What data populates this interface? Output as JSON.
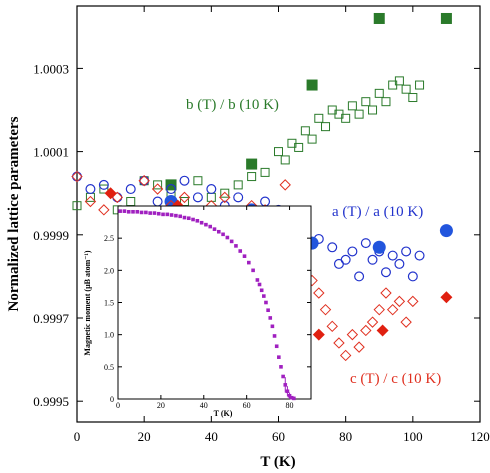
{
  "chart_data": [
    {
      "type": "scatter",
      "title": "",
      "xlabel": "T (K)",
      "ylabel": "Normalized lattice parameters",
      "xlim": [
        0,
        120
      ],
      "ylim": [
        0.99945,
        1.00045
      ],
      "xticks": [
        "0",
        "20",
        "40",
        "60",
        "80",
        "100",
        "120"
      ],
      "yticks": [
        "0.9995",
        "0.9997",
        "0.9999",
        "1.0001",
        "1.0003"
      ],
      "grid": false,
      "series": [
        {
          "name": "b (T) / b (10 K)",
          "color": "#2a7a2a",
          "marker": "open-square",
          "x": [
            0,
            4,
            8,
            12,
            16,
            20,
            24,
            28,
            32,
            36,
            40,
            44,
            48,
            52,
            56,
            60,
            62,
            64,
            66,
            68,
            70,
            72,
            74,
            76,
            78,
            80,
            82,
            84,
            86,
            88,
            90,
            92,
            94,
            96,
            98,
            100,
            102
          ],
          "y": [
            0.99997,
            0.99999,
            1.00001,
            0.99996,
            0.99998,
            1.00003,
            1.00002,
            1.0,
            0.99998,
            1.00003,
            0.99999,
            1.0,
            1.00002,
            1.00004,
            1.00005,
            1.0001,
            1.00008,
            1.00012,
            1.00011,
            1.00015,
            1.00013,
            1.00018,
            1.00016,
            1.0002,
            1.00019,
            1.00018,
            1.00021,
            1.00019,
            1.00022,
            1.0002,
            1.00024,
            1.00022,
            1.00026,
            1.00027,
            1.00025,
            1.00023,
            1.00026
          ]
        },
        {
          "name": "b (T) / b (10 K) (filled)",
          "color": "#2a7a2a",
          "marker": "filled-square",
          "x": [
            28,
            52,
            70,
            90,
            110
          ],
          "y": [
            1.00002,
            1.00007,
            1.00026,
            1.00042,
            1.00042
          ]
        },
        {
          "name": "a (T) / a (10 K)",
          "color": "#2233cc",
          "marker": "open-circle",
          "x": [
            0,
            4,
            8,
            12,
            16,
            20,
            24,
            28,
            32,
            36,
            40,
            44,
            48,
            52,
            56,
            60,
            64,
            68,
            72,
            76,
            78,
            80,
            82,
            84,
            86,
            88,
            90,
            92,
            94,
            96,
            98,
            100,
            102
          ],
          "y": [
            1.00004,
            1.00001,
            1.00002,
            0.99999,
            1.00001,
            1.00003,
            0.99998,
            1.00001,
            1.00003,
            0.99999,
            1.00001,
            0.99997,
            0.99999,
            0.99996,
            0.99998,
            0.99996,
            0.99993,
            0.99991,
            0.99989,
            0.99987,
            0.99983,
            0.99984,
            0.99986,
            0.9998,
            0.99988,
            0.99984,
            0.99986,
            0.99981,
            0.99985,
            0.99983,
            0.99986,
            0.9998,
            0.99985
          ]
        },
        {
          "name": "a (T) / a (10 K) (filled)",
          "color": "#2255dd",
          "marker": "filled-circle",
          "x": [
            28,
            52,
            70,
            90,
            110
          ],
          "y": [
            0.99998,
            0.99996,
            0.99988,
            0.99987,
            0.99991
          ]
        },
        {
          "name": "c (T) / c (10 K)",
          "color": "#e03020",
          "marker": "open-diamond",
          "x": [
            0,
            4,
            8,
            12,
            16,
            20,
            24,
            28,
            32,
            36,
            40,
            44,
            48,
            52,
            56,
            60,
            62,
            64,
            66,
            68,
            70,
            72,
            74,
            76,
            78,
            80,
            82,
            84,
            86,
            88,
            90,
            92,
            94,
            96,
            98,
            100
          ],
          "y": [
            1.00004,
            0.99998,
            0.99996,
            0.99999,
            0.99995,
            1.00003,
            1.00001,
            0.99997,
            0.99999,
            0.99995,
            0.99997,
            0.99999,
            0.99994,
            0.99997,
            0.99996,
            0.99992,
            1.00002,
            0.99993,
            0.99986,
            0.99988,
            0.99979,
            0.99976,
            0.99972,
            0.99968,
            0.99964,
            0.99961,
            0.99966,
            0.99963,
            0.99967,
            0.99969,
            0.99972,
            0.99976,
            0.99972,
            0.99974,
            0.99969,
            0.99974
          ]
        },
        {
          "name": "c (T) / c (10 K) (filled)",
          "color": "#e02010",
          "marker": "filled-diamond",
          "x": [
            10,
            30,
            52,
            72,
            91,
            110
          ],
          "y": [
            1.0,
            0.99997,
            0.99995,
            0.99966,
            0.99967,
            0.99975
          ]
        }
      ],
      "annotations": [
        "b (T) / b (10 K)",
        "a (T) / a (10 K)",
        "c (T) / c (10 K)"
      ]
    },
    {
      "type": "scatter",
      "title": "",
      "xlabel": "T (K)",
      "ylabel": "Magnetic moment (μB atom⁻¹)",
      "xlim": [
        0,
        90
      ],
      "ylim": [
        0,
        3.0
      ],
      "xticks": [
        "0",
        "20",
        "40",
        "60",
        "80"
      ],
      "yticks": [
        "0",
        "0.5",
        "1.0",
        "1.5",
        "2.0",
        "2.5"
      ],
      "series": [
        {
          "name": "",
          "color": "#a020c0",
          "marker": "filled-square-small",
          "x": [
            1,
            3,
            5,
            7,
            9,
            11,
            13,
            15,
            17,
            19,
            21,
            23,
            25,
            27,
            29,
            31,
            33,
            35,
            37,
            39,
            41,
            43,
            45,
            47,
            49,
            51,
            53,
            55,
            57,
            59,
            61,
            63,
            65,
            66,
            67,
            68,
            69,
            70,
            71,
            72,
            73,
            74,
            75,
            76,
            77,
            78,
            79,
            80,
            81,
            82
          ],
          "y": [
            2.92,
            2.92,
            2.91,
            2.91,
            2.91,
            2.9,
            2.9,
            2.89,
            2.89,
            2.88,
            2.87,
            2.87,
            2.86,
            2.85,
            2.84,
            2.82,
            2.81,
            2.79,
            2.77,
            2.74,
            2.71,
            2.68,
            2.64,
            2.6,
            2.56,
            2.51,
            2.45,
            2.38,
            2.3,
            2.22,
            2.12,
            2.0,
            1.85,
            1.78,
            1.69,
            1.6,
            1.5,
            1.38,
            1.26,
            1.13,
            0.98,
            0.82,
            0.65,
            0.5,
            0.35,
            0.22,
            0.12,
            0.05,
            0.02,
            0.01
          ]
        }
      ]
    }
  ]
}
